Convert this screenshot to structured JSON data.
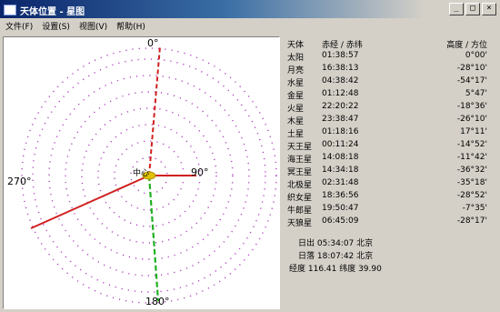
{
  "window": {
    "title": "天体位置 - 星图",
    "buttons": [
      "_",
      "□",
      "×"
    ]
  },
  "menu": [
    "文件(F)",
    "设置(S)",
    "视图(V)",
    "帮助(H)"
  ],
  "plot": {
    "directions": {
      "north": "0°",
      "east": "90°",
      "south": "180°",
      "west": "270°"
    },
    "center_label": "中心",
    "colors": {
      "grid": "#b040c0",
      "red_line": "#d02020",
      "green_line": "#20b020",
      "marker": "#e0c000"
    }
  },
  "table": {
    "header": {
      "name": "天体",
      "coord": "赤经 / 赤纬",
      "elevation": "高度 / 方位"
    },
    "rows": [
      {
        "name": "太阳",
        "coord": "01:38:57",
        "elevation": "0°00'"
      },
      {
        "name": "月亮",
        "coord": "16:38:13",
        "elevation": "-28°10'"
      },
      {
        "name": "水星",
        "coord": "04:38:42",
        "elevation": "-54°17'"
      },
      {
        "name": "金星",
        "coord": "01:12:48",
        "elevation": "5°47'"
      },
      {
        "name": "火星",
        "coord": "22:20:22",
        "elevation": "-18°36'"
      },
      {
        "name": "木星",
        "coord": "23:38:47",
        "elevation": "-26°10'"
      },
      {
        "name": "土星",
        "coord": "01:18:16",
        "elevation": "17°11'"
      },
      {
        "name": "天王星",
        "coord": "00:11:24",
        "elevation": "-14°52'"
      },
      {
        "name": "海王星",
        "coord": "14:08:18",
        "elevation": "-11°42'"
      },
      {
        "name": "冥王星",
        "coord": "14:34:18",
        "elevation": "-36°32'"
      },
      {
        "name": "北极星",
        "coord": "02:31:48",
        "elevation": "-35°18'"
      },
      {
        "name": "织女星",
        "coord": "18:36:56",
        "elevation": "-28°52'"
      },
      {
        "name": "牛郎星",
        "coord": "19:50:47",
        "elevation": "-7°35'"
      },
      {
        "name": "天狼星",
        "coord": "06:45:09",
        "elevation": "-28°17'"
      }
    ]
  },
  "summary": {
    "line1": "日出  05:34:07  北京",
    "line2": "日落  18:07:42  北京",
    "line3": "经度 116.41  纬度 39.90"
  }
}
